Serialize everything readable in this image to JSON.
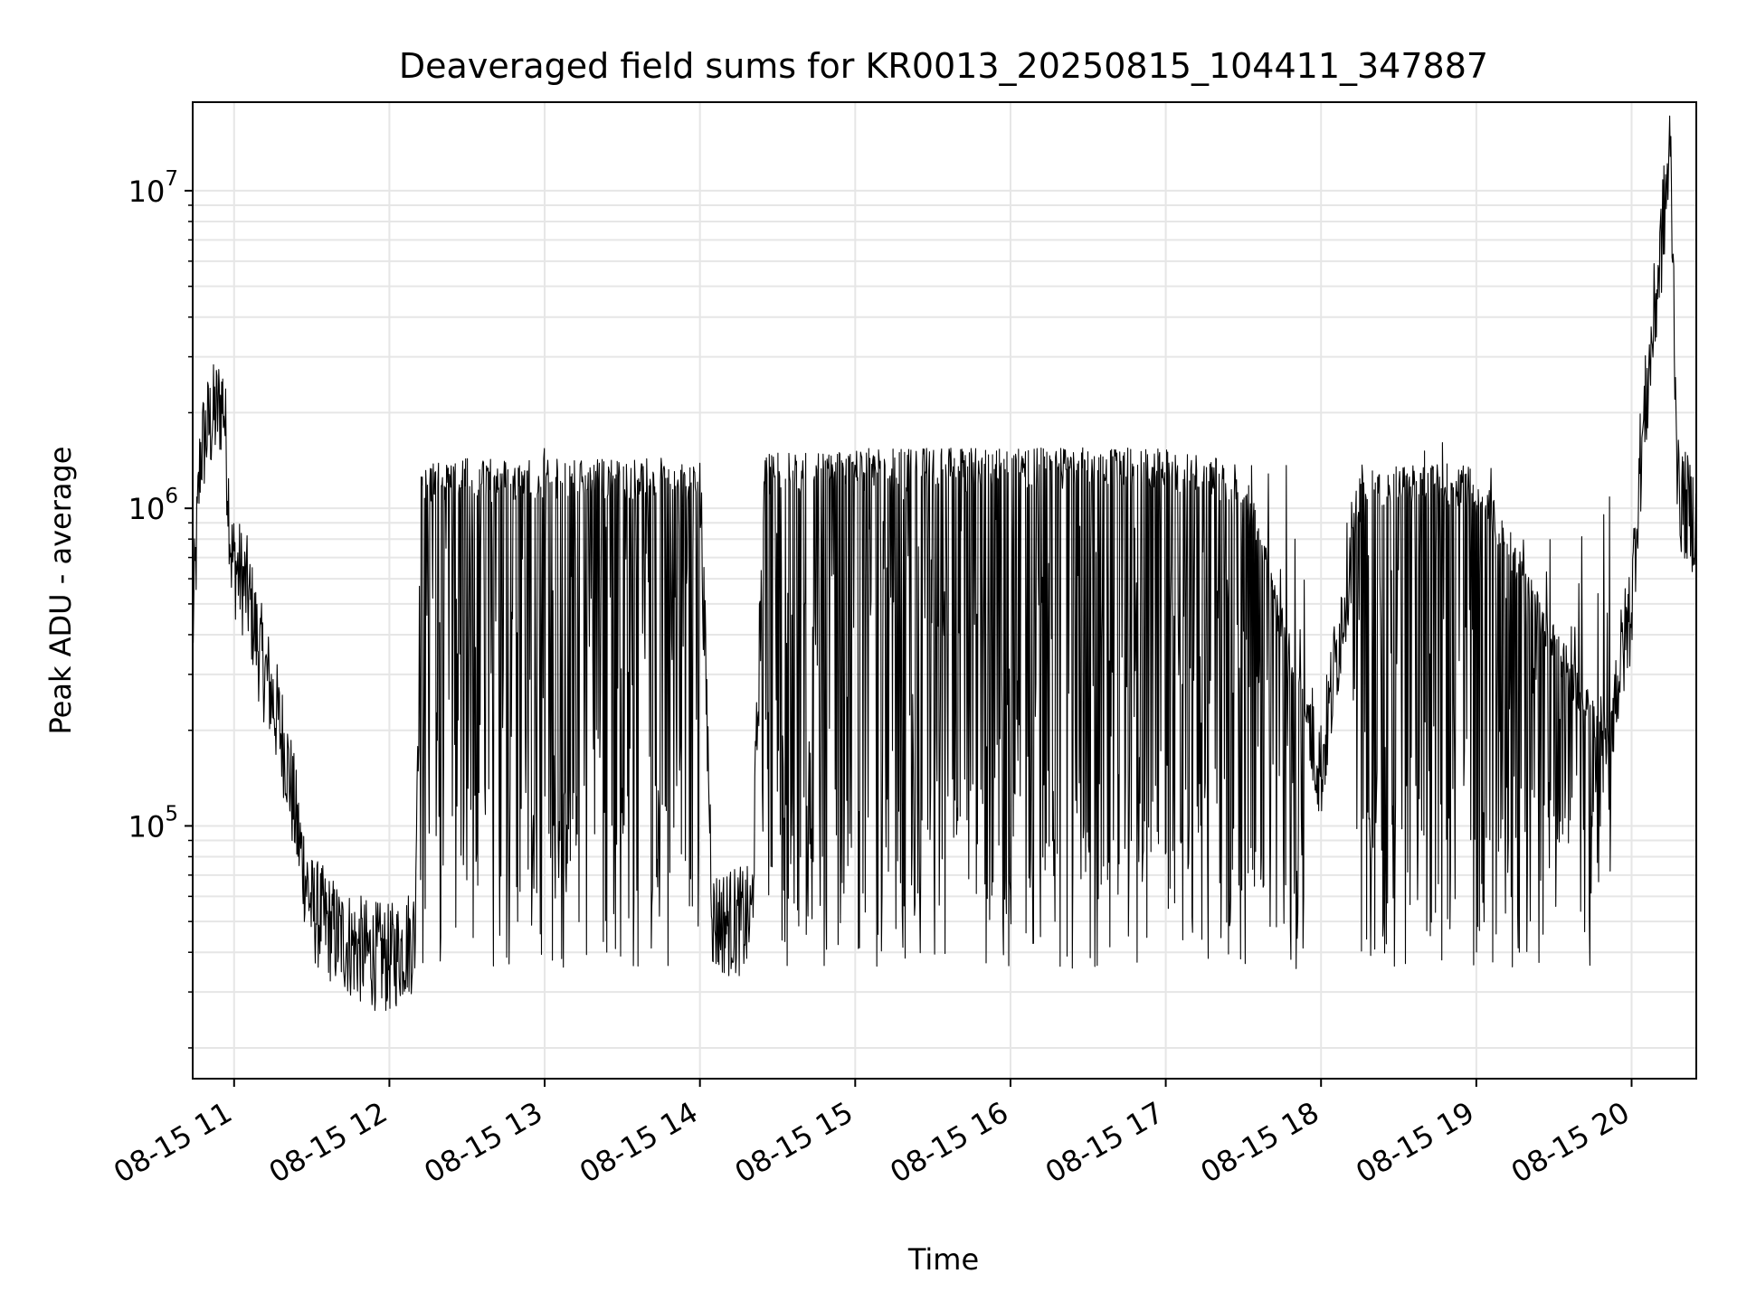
{
  "chart_data": {
    "type": "line",
    "title": "Deaveraged field sums for KR0013_20250815_104411_347887",
    "xlabel": "Time",
    "ylabel": "Peak ADU - average",
    "yscale": "log",
    "grid": true,
    "line_color": "#000000",
    "grid_color": "#e6e6e6",
    "xlim": [
      "2025-08-15 10:44",
      "2025-08-15 20:25"
    ],
    "ylim": [
      16000,
      19000000
    ],
    "x_ticks": [
      {
        "value": "2025-08-15 11:00",
        "label": "08-15 11"
      },
      {
        "value": "2025-08-15 12:00",
        "label": "08-15 12"
      },
      {
        "value": "2025-08-15 13:00",
        "label": "08-15 13"
      },
      {
        "value": "2025-08-15 14:00",
        "label": "08-15 14"
      },
      {
        "value": "2025-08-15 15:00",
        "label": "08-15 15"
      },
      {
        "value": "2025-08-15 16:00",
        "label": "08-15 16"
      },
      {
        "value": "2025-08-15 17:00",
        "label": "08-15 17"
      },
      {
        "value": "2025-08-15 18:00",
        "label": "08-15 18"
      },
      {
        "value": "2025-08-15 19:00",
        "label": "08-15 19"
      },
      {
        "value": "2025-08-15 20:00",
        "label": "08-15 20"
      }
    ],
    "y_ticks": [
      {
        "value": 100000,
        "base": "10",
        "exp": "5"
      },
      {
        "value": 1000000,
        "base": "10",
        "exp": "6"
      },
      {
        "value": 10000000,
        "base": "10",
        "exp": "7"
      }
    ],
    "series": [
      {
        "points": [
          [
            "2025-08-15 10:44",
            400000
          ],
          [
            "2025-08-15 10:47",
            1500000
          ],
          [
            "2025-08-15 10:50",
            1800000
          ],
          [
            "2025-08-15 10:53",
            2000000
          ],
          [
            "2025-08-15 10:56",
            2200000
          ],
          [
            "2025-08-15 10:59",
            700000
          ],
          [
            "2025-08-15 11:05",
            550000
          ],
          [
            "2025-08-15 11:10",
            350000
          ],
          [
            "2025-08-15 11:15",
            250000
          ],
          [
            "2025-08-15 11:20",
            170000
          ],
          [
            "2025-08-15 11:25",
            90000
          ],
          [
            "2025-08-15 11:30",
            55000
          ],
          [
            "2025-08-15 11:40",
            45000
          ],
          [
            "2025-08-15 11:50",
            40000
          ],
          [
            "2025-08-15 12:00",
            38000
          ],
          [
            "2025-08-15 12:10",
            45000
          ],
          [
            "2025-08-15 12:12",
            1200000
          ],
          [
            "2025-08-15 12:30",
            1250000
          ],
          [
            "2025-08-15 13:00",
            1250000
          ],
          [
            "2025-08-15 13:30",
            1250000
          ],
          [
            "2025-08-15 14:00",
            1250000
          ],
          [
            "2025-08-15 14:05",
            50000
          ],
          [
            "2025-08-15 14:20",
            50000
          ],
          [
            "2025-08-15 14:25",
            1300000
          ],
          [
            "2025-08-15 15:00",
            1350000
          ],
          [
            "2025-08-15 16:00",
            1350000
          ],
          [
            "2025-08-15 17:00",
            1350000
          ],
          [
            "2025-08-15 17:30",
            1200000
          ],
          [
            "2025-08-15 17:50",
            300000
          ],
          [
            "2025-08-15 18:00",
            150000
          ],
          [
            "2025-08-15 18:15",
            1200000
          ],
          [
            "2025-08-15 19:00",
            1200000
          ],
          [
            "2025-08-15 19:50",
            180000
          ],
          [
            "2025-08-15 20:00",
            500000
          ],
          [
            "2025-08-15 20:03",
            1300000
          ],
          [
            "2025-08-15 20:15",
            13500000
          ],
          [
            "2025-08-15 20:18",
            1100000
          ],
          [
            "2025-08-15 20:25",
            900000
          ]
        ]
      }
    ]
  }
}
